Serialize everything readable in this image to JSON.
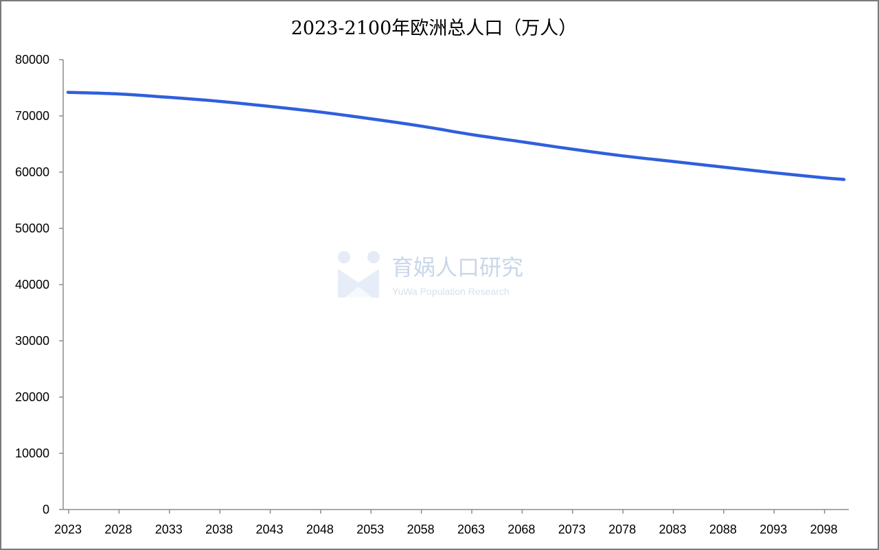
{
  "watermark": {
    "brand": "育娲人口研究",
    "sub": "YuWa Population Research"
  },
  "chart_data": {
    "type": "line",
    "title": "2023-2100年欧洲总人口（万人）",
    "xlabel": "",
    "ylabel": "",
    "ylim": [
      0,
      80000
    ],
    "yticks": [
      0,
      10000,
      20000,
      30000,
      40000,
      50000,
      60000,
      70000,
      80000
    ],
    "xlim": [
      2023,
      2100
    ],
    "xticks": [
      2023,
      2028,
      2033,
      2038,
      2043,
      2048,
      2053,
      2058,
      2063,
      2068,
      2073,
      2078,
      2083,
      2088,
      2093,
      2098
    ],
    "grid": false,
    "legend": "none",
    "series": [
      {
        "color": "#2f5fdc",
        "x": [
          2023,
          2028,
          2033,
          2038,
          2043,
          2048,
          2053,
          2058,
          2063,
          2068,
          2073,
          2078,
          2083,
          2088,
          2093,
          2098,
          2100
        ],
        "y": [
          74200,
          73900,
          73300,
          72600,
          71700,
          70700,
          69500,
          68200,
          66700,
          65400,
          64100,
          62900,
          61900,
          60900,
          59900,
          59000,
          58700
        ]
      }
    ]
  }
}
